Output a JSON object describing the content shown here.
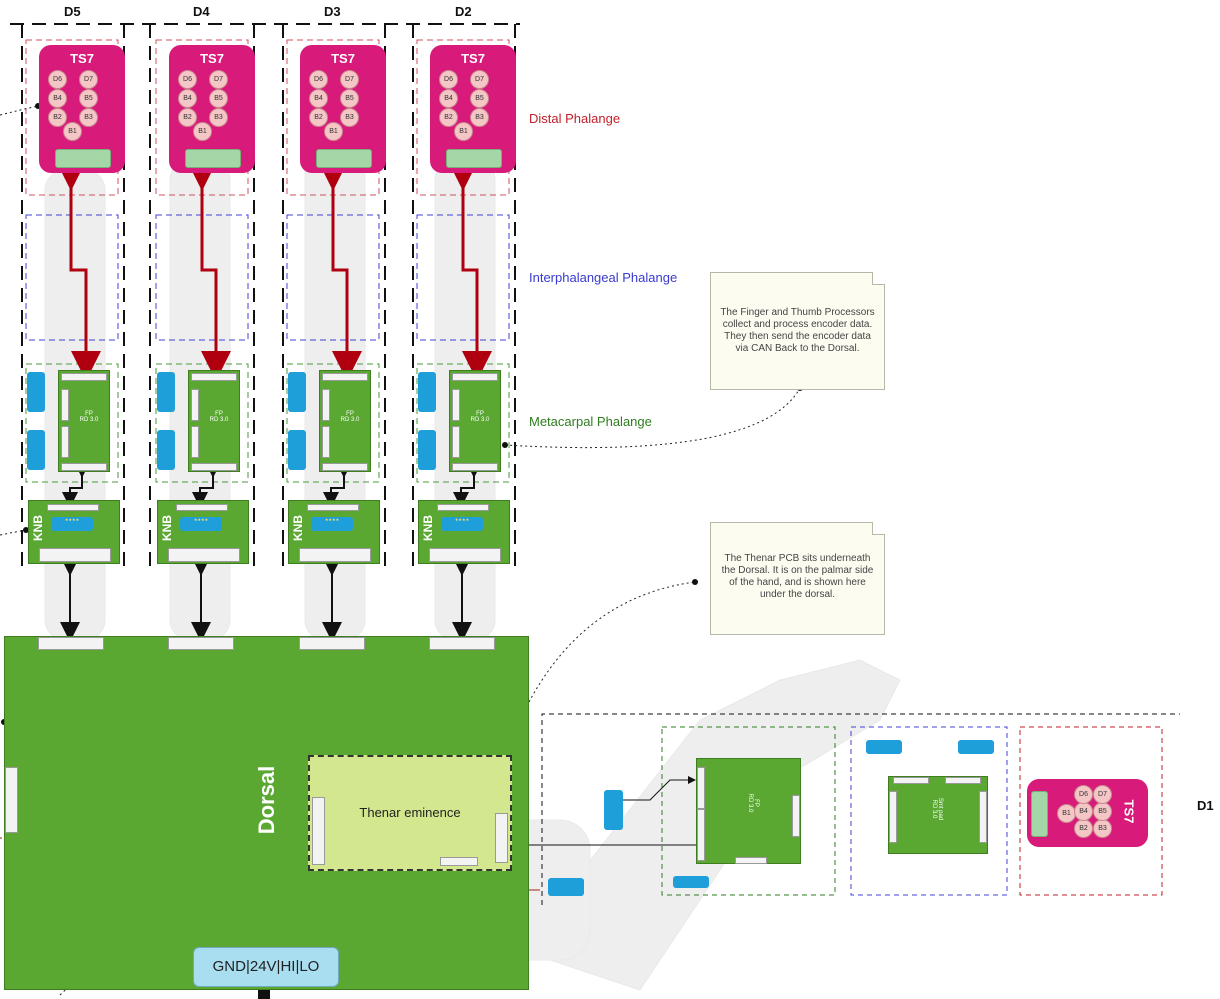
{
  "digits": [
    {
      "label": "D5",
      "ts7": "TS7",
      "fp": "FP\nRD 3.0",
      "knb": "KNB"
    },
    {
      "label": "D4",
      "ts7": "TS7",
      "fp": "FP\nRD 3.0",
      "knb": "KNB"
    },
    {
      "label": "D3",
      "ts7": "TS7",
      "fp": "FP\nRD 3.0",
      "knb": "KNB"
    },
    {
      "label": "D2",
      "ts7": "TS7",
      "fp": "FP\nRD 3.0",
      "knb": "KNB"
    }
  ],
  "ts7_pads": [
    "D6",
    "D7",
    "B4",
    "B5",
    "B2",
    "B3",
    "B1"
  ],
  "rows": {
    "distal": "Distal Phalange",
    "interphalangeal": "Interphalangeal Phalange",
    "metacarpal": "Metacarpal Phalange"
  },
  "notes": {
    "processors": "The Finger and Thumb Processors collect and process encoder data. They then send the encoder data via CAN Back to the Dorsal.",
    "thenar": "The Thenar PCB sits underneath the Dorsal. It is on the palmar side of the hand, and is shown here under the dorsal."
  },
  "dorsal": {
    "label": "Dorsal",
    "thenar": "Thenar eminence",
    "power": "GND|24V|HI|LO"
  },
  "thumb": {
    "label": "D1",
    "ts7": "TS7",
    "fp": "FP\nRD 3.0",
    "knb": "Smt pad\nRD 3.0",
    "pads": [
      "D6",
      "B4",
      "B2",
      "D7",
      "B5",
      "B3",
      "B1"
    ]
  },
  "colors": {
    "pcb_green": "#5aa832",
    "ts7_pink": "#d81b7a",
    "distal_red": "#c0202a",
    "inter_blue": "#3a3ad0",
    "meta_green": "#2e7d1e",
    "arrow_red": "#b00010",
    "power_blue": "#a8def0"
  }
}
